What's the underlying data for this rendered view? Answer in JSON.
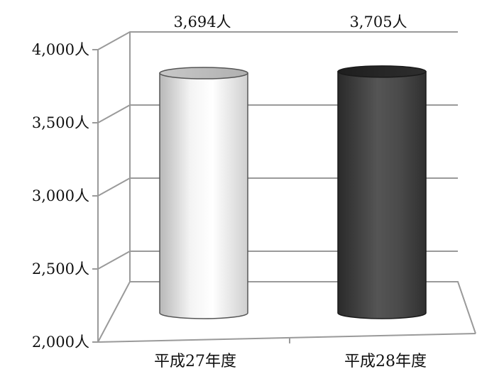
{
  "chart_data": {
    "type": "bar",
    "style": "3d-cylinder",
    "categories": [
      "平成27年度",
      "平成28年度"
    ],
    "values": [
      3694,
      3705
    ],
    "data_labels": [
      "3,694人",
      "3,705人"
    ],
    "ylim": [
      2000,
      4000
    ],
    "yticks": [
      2000,
      2500,
      3000,
      3500,
      4000
    ],
    "ytick_labels": [
      "2,000人",
      "2,500人",
      "3,000人",
      "3,500人",
      "4,000人"
    ],
    "grid": true,
    "bar_colors": [
      "#e8e8e8",
      "#404040"
    ]
  }
}
